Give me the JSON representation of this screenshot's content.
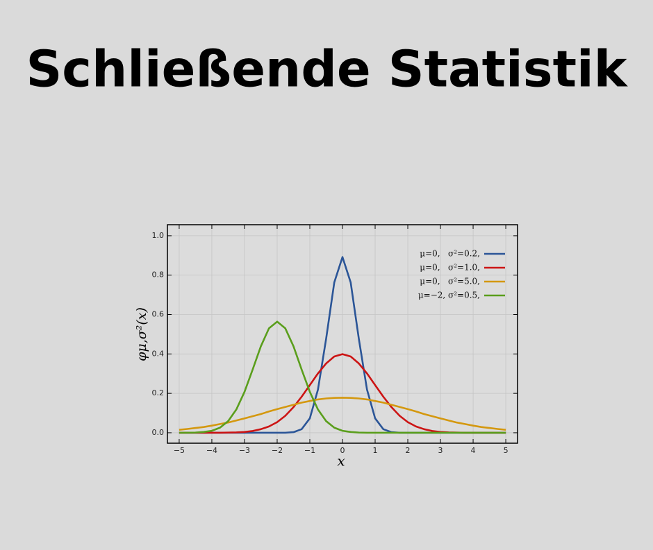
{
  "header": {
    "title": "Schließende Statistik"
  },
  "chart_data": {
    "type": "line",
    "x_label": "x",
    "y_label": "φμ,σ²(x)",
    "xlim": [
      -5.36,
      5.36
    ],
    "ylim": [
      -0.053,
      1.056
    ],
    "xticks": [
      {
        "value": -5,
        "label": "−5"
      },
      {
        "value": -4,
        "label": "−4"
      },
      {
        "value": -3,
        "label": "−3"
      },
      {
        "value": -2,
        "label": "−2"
      },
      {
        "value": -1,
        "label": "−1"
      },
      0,
      1,
      2,
      3,
      4,
      5
    ],
    "yticks": [
      {
        "value": 0,
        "label": "0.0"
      },
      0.2,
      0.4,
      0.6,
      0.8,
      {
        "value": 1,
        "label": "1.0"
      }
    ],
    "grid": true,
    "legend": "upper right",
    "x": [
      -5,
      -4.75,
      -4.5,
      -4.25,
      -4,
      -3.75,
      -3.5,
      -3.25,
      -3,
      -2.75,
      -2.5,
      -2.25,
      -2,
      -1.75,
      -1.5,
      -1.25,
      -1,
      -0.75,
      -0.5,
      -0.25,
      0,
      0.25,
      0.5,
      0.75,
      1,
      1.25,
      1.5,
      1.75,
      2,
      2.25,
      2.5,
      2.75,
      3,
      3.25,
      3.5,
      3.75,
      4,
      4.25,
      4.5,
      4.75,
      5
    ],
    "series": [
      {
        "name": "μ=0,   σ²=0.2,",
        "color": "#2b5597",
        "values": [
          0,
          0,
          0,
          0,
          0,
          0,
          0,
          0,
          0,
          0,
          0,
          0,
          0,
          0,
          0.003,
          0.018,
          0.073,
          0.219,
          0.478,
          0.763,
          0.892,
          0.763,
          0.478,
          0.219,
          0.073,
          0.018,
          0.003,
          0,
          0,
          0,
          0,
          0,
          0,
          0,
          0,
          0,
          0,
          0,
          0,
          0,
          0
        ]
      },
      {
        "name": "μ=0,   σ²=1.0,",
        "color": "#cc1414",
        "values": [
          0,
          0,
          0,
          0,
          0,
          0,
          0.001,
          0.002,
          0.004,
          0.009,
          0.018,
          0.032,
          0.054,
          0.086,
          0.13,
          0.183,
          0.242,
          0.301,
          0.352,
          0.387,
          0.399,
          0.387,
          0.352,
          0.301,
          0.242,
          0.183,
          0.13,
          0.086,
          0.054,
          0.032,
          0.018,
          0.009,
          0.004,
          0.002,
          0.001,
          0,
          0,
          0,
          0,
          0,
          0
        ]
      },
      {
        "name": "μ=0,   σ²=5.0,",
        "color": "#d4980f",
        "values": [
          0.015,
          0.019,
          0.024,
          0.029,
          0.036,
          0.044,
          0.052,
          0.062,
          0.073,
          0.084,
          0.095,
          0.108,
          0.12,
          0.131,
          0.142,
          0.153,
          0.161,
          0.169,
          0.174,
          0.177,
          0.178,
          0.177,
          0.174,
          0.169,
          0.161,
          0.153,
          0.142,
          0.131,
          0.12,
          0.108,
          0.095,
          0.084,
          0.073,
          0.062,
          0.052,
          0.044,
          0.036,
          0.029,
          0.024,
          0.019,
          0.015
        ]
      },
      {
        "name": "μ=−2, σ²=0.5,",
        "color": "#5a9e1c",
        "values": [
          0,
          0,
          0.001,
          0.004,
          0.01,
          0.026,
          0.059,
          0.118,
          0.208,
          0.321,
          0.439,
          0.53,
          0.564,
          0.53,
          0.439,
          0.321,
          0.208,
          0.118,
          0.059,
          0.026,
          0.01,
          0.004,
          0.001,
          0,
          0,
          0,
          0,
          0,
          0,
          0,
          0,
          0,
          0,
          0,
          0,
          0,
          0,
          0,
          0,
          0,
          0
        ]
      }
    ]
  }
}
